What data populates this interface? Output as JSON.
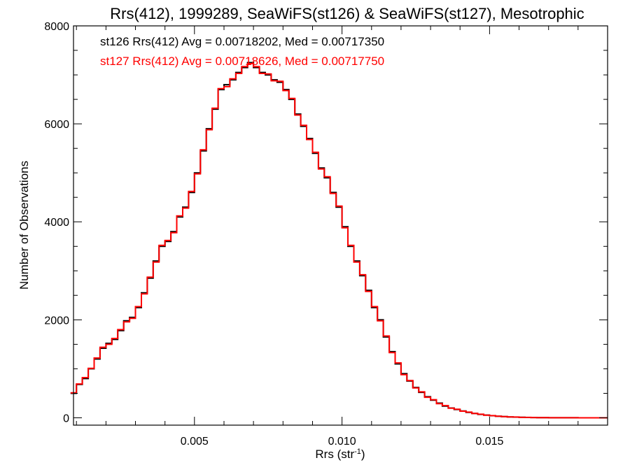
{
  "chart_data": {
    "type": "line",
    "step": true,
    "title": "Rrs(412), 1999289, SeaWiFS(st126) & SeaWiFS(st127), Mesotrophic",
    "xlabel": "Rrs (str",
    "xlabel_sup": "-1",
    "xlabel_close": ")",
    "ylabel": "Number of Observations",
    "xlim": [
      0.0009,
      0.019
    ],
    "ylim": [
      -150,
      8000
    ],
    "xticks": [
      {
        "value": 0.005,
        "label": "0.005"
      },
      {
        "value": 0.01,
        "label": "0.010"
      },
      {
        "value": 0.015,
        "label": "0.015"
      }
    ],
    "yticks": [
      {
        "value": 0,
        "label": "0"
      },
      {
        "value": 2000,
        "label": "2000"
      },
      {
        "value": 4000,
        "label": "4000"
      },
      {
        "value": 6000,
        "label": "6000"
      },
      {
        "value": 8000,
        "label": "8000"
      }
    ],
    "x_minor_step": 0.001,
    "y_minor_step": 500,
    "legend": [
      {
        "text": "st126 Rrs(412) Avg = 0.00718202, Med = 0.00717350",
        "color": "#000000"
      },
      {
        "text": "st127 Rrs(412) Avg = 0.00718626, Med = 0.00717750",
        "color": "#ff0000"
      }
    ],
    "series": [
      {
        "name": "st126",
        "color": "#000000",
        "x": [
          0.0009,
          0.0011,
          0.0013,
          0.0015,
          0.0017,
          0.0019,
          0.0021,
          0.0023,
          0.0025,
          0.0027,
          0.0029,
          0.0031,
          0.0033,
          0.0035,
          0.0037,
          0.0039,
          0.0041,
          0.0043,
          0.0045,
          0.0047,
          0.0049,
          0.0051,
          0.0053,
          0.0055,
          0.0057,
          0.0059,
          0.0061,
          0.0063,
          0.0065,
          0.0067,
          0.0069,
          0.0071,
          0.0073,
          0.0075,
          0.0077,
          0.0079,
          0.0081,
          0.0083,
          0.0085,
          0.0087,
          0.0089,
          0.0091,
          0.0093,
          0.0095,
          0.0097,
          0.0099,
          0.0101,
          0.0103,
          0.0105,
          0.0107,
          0.0109,
          0.0111,
          0.0113,
          0.0115,
          0.0117,
          0.0119,
          0.0121,
          0.0123,
          0.0125,
          0.0127,
          0.0129,
          0.0131,
          0.0133,
          0.0135,
          0.0137,
          0.0139,
          0.0141,
          0.0143,
          0.0145,
          0.0147,
          0.0149,
          0.0151,
          0.0153,
          0.0155,
          0.0157,
          0.0159,
          0.0161,
          0.0163,
          0.0165,
          0.0167,
          0.0169,
          0.0171,
          0.0173,
          0.0175,
          0.0177,
          0.0179,
          0.0181,
          0.0183,
          0.0185,
          0.0187,
          0.0189
        ],
        "values": [
          500,
          680,
          800,
          1000,
          1200,
          1420,
          1520,
          1600,
          1780,
          1980,
          2050,
          2250,
          2550,
          2850,
          3200,
          3500,
          3600,
          3800,
          4100,
          4300,
          4600,
          5000,
          5450,
          5900,
          6300,
          6700,
          6800,
          6900,
          7050,
          7150,
          7250,
          7150,
          7050,
          7000,
          6900,
          6850,
          6700,
          6500,
          6200,
          5950,
          5700,
          5400,
          5100,
          4900,
          4600,
          4300,
          3900,
          3500,
          3200,
          2900,
          2600,
          2250,
          2000,
          1650,
          1350,
          1100,
          900,
          750,
          620,
          520,
          430,
          360,
          300,
          240,
          200,
          170,
          140,
          110,
          90,
          70,
          55,
          42,
          32,
          24,
          18,
          14,
          10,
          7,
          5,
          4,
          3,
          2,
          2,
          1,
          1,
          1,
          0,
          0,
          0,
          0,
          0
        ]
      },
      {
        "name": "st127",
        "color": "#ff0000",
        "x": [
          0.0009,
          0.0011,
          0.0013,
          0.0015,
          0.0017,
          0.0019,
          0.0021,
          0.0023,
          0.0025,
          0.0027,
          0.0029,
          0.0031,
          0.0033,
          0.0035,
          0.0037,
          0.0039,
          0.0041,
          0.0043,
          0.0045,
          0.0047,
          0.0049,
          0.0051,
          0.0053,
          0.0055,
          0.0057,
          0.0059,
          0.0061,
          0.0063,
          0.0065,
          0.0067,
          0.0069,
          0.0071,
          0.0073,
          0.0075,
          0.0077,
          0.0079,
          0.0081,
          0.0083,
          0.0085,
          0.0087,
          0.0089,
          0.0091,
          0.0093,
          0.0095,
          0.0097,
          0.0099,
          0.0101,
          0.0103,
          0.0105,
          0.0107,
          0.0109,
          0.0111,
          0.0113,
          0.0115,
          0.0117,
          0.0119,
          0.0121,
          0.0123,
          0.0125,
          0.0127,
          0.0129,
          0.0131,
          0.0133,
          0.0135,
          0.0137,
          0.0139,
          0.0141,
          0.0143,
          0.0145,
          0.0147,
          0.0149,
          0.0151,
          0.0153,
          0.0155,
          0.0157,
          0.0159,
          0.0161,
          0.0163,
          0.0165,
          0.0167,
          0.0169,
          0.0171,
          0.0173,
          0.0175,
          0.0177,
          0.0179,
          0.0181,
          0.0183,
          0.0185,
          0.0187,
          0.0189
        ],
        "values": [
          510,
          690,
          820,
          1010,
          1220,
          1440,
          1500,
          1620,
          1800,
          1960,
          2030,
          2270,
          2530,
          2870,
          3180,
          3520,
          3620,
          3780,
          4120,
          4280,
          4620,
          4980,
          5470,
          5880,
          6320,
          6720,
          6760,
          6920,
          7030,
          7170,
          7230,
          7170,
          7030,
          7020,
          6880,
          6870,
          6680,
          6520,
          6180,
          5970,
          5680,
          5420,
          5080,
          4920,
          4580,
          4320,
          3880,
          3520,
          3180,
          2920,
          2580,
          2270,
          1980,
          1670,
          1330,
          1120,
          880,
          760,
          610,
          530,
          420,
          370,
          290,
          250,
          195,
          175,
          135,
          115,
          88,
          72,
          53,
          44,
          31,
          25,
          17,
          15,
          9,
          8,
          5,
          4,
          3,
          2,
          2,
          1,
          1,
          1,
          0,
          0,
          0,
          0,
          0
        ]
      }
    ]
  }
}
